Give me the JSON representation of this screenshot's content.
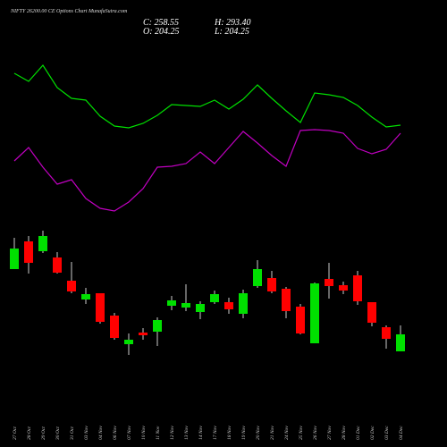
{
  "chart_data": {
    "type": "candlestick",
    "title": "NIFTY 26200.00 CE Options Chart MunafaSutra.com",
    "ohlc_labels": {
      "close": "C: 258.55",
      "high": "H: 293.40",
      "open": "O: 204.25",
      "low": "L: 204.25"
    },
    "categories": [
      "27 Oct",
      "28 Oct",
      "29 Oct",
      "30 Oct",
      "31 Oct",
      "03 Nov",
      "04 Nov",
      "06 Nov",
      "07 Nov",
      "10 Nov",
      "11 Nov",
      "12 Nov",
      "13 Nov",
      "14 Nov",
      "17 Nov",
      "18 Nov",
      "19 Nov",
      "20 Nov",
      "21 Nov",
      "24 Nov",
      "25 Nov",
      "26 Nov",
      "27 Nov",
      "28 Nov",
      "01 Dec",
      "02 Dec",
      "03 Dec",
      "04 Dec"
    ],
    "open": [
      199,
      230,
      219,
      212,
      186,
      165,
      172,
      147,
      115,
      128,
      129,
      158,
      156,
      151,
      162,
      162,
      149,
      180,
      189,
      177,
      157,
      116,
      188,
      181,
      192,
      162,
      134,
      107
    ],
    "high": [
      234,
      236,
      242,
      218,
      207,
      178,
      172,
      150,
      127,
      133,
      145,
      169,
      182,
      163,
      175,
      167,
      176,
      209,
      197,
      179,
      160,
      184,
      206,
      185,
      197,
      162,
      136,
      136
    ],
    "low": [
      199,
      194,
      217,
      194,
      172,
      160,
      138,
      120,
      103,
      120,
      113,
      153,
      152,
      143,
      160,
      149,
      144,
      178,
      172,
      144,
      126,
      116,
      166,
      171,
      159,
      135,
      110,
      107
    ],
    "close": [
      222,
      206,
      236,
      195,
      174,
      171,
      140,
      122,
      120,
      125,
      142,
      164,
      161,
      160,
      171,
      154,
      172,
      199,
      174,
      152,
      127,
      183,
      180,
      175,
      163,
      139,
      121,
      126
    ],
    "up_color": "#00e000",
    "down_color": "#ff0000",
    "series": [
      {
        "color": "#00e000",
        "values": [
          418,
          409,
          427,
          402,
          390,
          388,
          370,
          359,
          357,
          362,
          371,
          383,
          382,
          381,
          388,
          378,
          389,
          405,
          390,
          376,
          363,
          396,
          394,
          391,
          382,
          369,
          358,
          360
        ]
      },
      {
        "color": "#c000c0",
        "values": [
          320,
          335,
          313,
          294,
          299,
          278,
          267,
          264,
          274,
          289,
          313,
          314,
          317,
          330,
          317,
          335,
          353,
          340,
          326,
          314,
          354,
          355,
          354,
          351,
          334,
          328,
          333,
          351
        ]
      }
    ],
    "ylim": [
      0,
      500
    ]
  }
}
